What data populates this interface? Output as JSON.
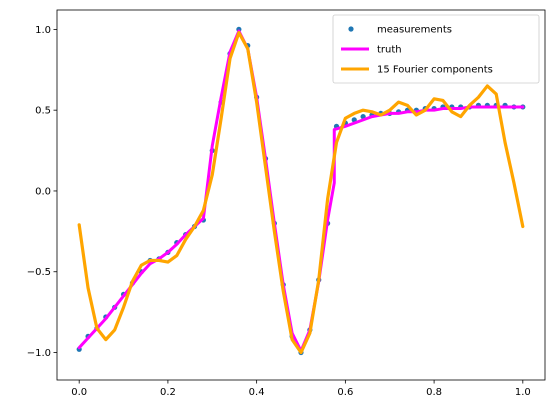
{
  "chart_data": {
    "type": "scatter",
    "title": "",
    "xlabel": "",
    "ylabel": "",
    "xlim": [
      -0.05,
      1.05
    ],
    "ylim": [
      -1.17,
      1.12
    ],
    "xticks": [
      0.0,
      0.2,
      0.4,
      0.6,
      0.8,
      1.0
    ],
    "xtick_labels": [
      "0.0",
      "0.2",
      "0.4",
      "0.6",
      "0.8",
      "1.0"
    ],
    "yticks": [
      -1.0,
      -0.5,
      0.0,
      0.5,
      1.0
    ],
    "ytick_labels": [
      "−1.0",
      "−0.5",
      "0.0",
      "0.5",
      "1.0"
    ],
    "grid": false,
    "legend_position": "top-right",
    "series": [
      {
        "name": "measurements",
        "kind": "scatter",
        "color": "#1f77b4",
        "x": [
          0.0,
          0.02,
          0.04,
          0.06,
          0.08,
          0.1,
          0.12,
          0.14,
          0.16,
          0.18,
          0.2,
          0.22,
          0.24,
          0.26,
          0.28,
          0.3,
          0.32,
          0.34,
          0.36,
          0.38,
          0.4,
          0.42,
          0.44,
          0.46,
          0.48,
          0.5,
          0.52,
          0.54,
          0.56,
          0.58,
          0.6,
          0.62,
          0.64,
          0.66,
          0.68,
          0.7,
          0.72,
          0.74,
          0.76,
          0.78,
          0.8,
          0.82,
          0.84,
          0.86,
          0.88,
          0.9,
          0.92,
          0.94,
          0.96,
          0.98,
          1.0
        ],
        "y": [
          -0.98,
          -0.9,
          -0.85,
          -0.78,
          -0.72,
          -0.64,
          -0.57,
          -0.5,
          -0.43,
          -0.42,
          -0.38,
          -0.32,
          -0.27,
          -0.22,
          -0.18,
          0.25,
          0.55,
          0.85,
          1.0,
          0.9,
          0.58,
          0.2,
          -0.2,
          -0.58,
          -0.9,
          -1.0,
          -0.86,
          -0.55,
          -0.2,
          0.4,
          0.42,
          0.44,
          0.46,
          0.47,
          0.48,
          0.48,
          0.49,
          0.5,
          0.5,
          0.51,
          0.51,
          0.52,
          0.52,
          0.52,
          0.52,
          0.53,
          0.53,
          0.53,
          0.53,
          0.52,
          0.52
        ]
      },
      {
        "name": "truth",
        "kind": "line",
        "color": "#ff00ff",
        "x": [
          0.0,
          0.02,
          0.04,
          0.06,
          0.08,
          0.1,
          0.12,
          0.14,
          0.16,
          0.18,
          0.2,
          0.22,
          0.24,
          0.26,
          0.28,
          0.3,
          0.32,
          0.34,
          0.36,
          0.38,
          0.4,
          0.42,
          0.44,
          0.46,
          0.48,
          0.5,
          0.52,
          0.54,
          0.56,
          0.575,
          0.575,
          0.6,
          0.62,
          0.64,
          0.66,
          0.68,
          0.7,
          0.72,
          0.74,
          0.76,
          0.78,
          0.8,
          0.82,
          0.84,
          0.86,
          0.88,
          0.9,
          0.92,
          0.94,
          0.96,
          0.98,
          1.0
        ],
        "y": [
          -0.97,
          -0.91,
          -0.85,
          -0.79,
          -0.72,
          -0.65,
          -0.58,
          -0.51,
          -0.45,
          -0.42,
          -0.38,
          -0.33,
          -0.27,
          -0.22,
          -0.17,
          0.28,
          0.58,
          0.86,
          0.99,
          0.88,
          0.58,
          0.2,
          -0.2,
          -0.58,
          -0.88,
          -0.99,
          -0.86,
          -0.56,
          -0.18,
          0.05,
          0.38,
          0.4,
          0.42,
          0.44,
          0.46,
          0.47,
          0.48,
          0.48,
          0.49,
          0.49,
          0.5,
          0.5,
          0.51,
          0.51,
          0.51,
          0.52,
          0.52,
          0.52,
          0.52,
          0.52,
          0.52,
          0.52
        ]
      },
      {
        "name": "15 Fourier components",
        "kind": "line",
        "color": "#ffa500",
        "x": [
          0.0,
          0.02,
          0.04,
          0.06,
          0.08,
          0.1,
          0.12,
          0.14,
          0.16,
          0.18,
          0.2,
          0.22,
          0.24,
          0.26,
          0.28,
          0.3,
          0.32,
          0.34,
          0.36,
          0.38,
          0.4,
          0.42,
          0.44,
          0.46,
          0.48,
          0.5,
          0.52,
          0.54,
          0.56,
          0.58,
          0.6,
          0.62,
          0.64,
          0.66,
          0.68,
          0.7,
          0.72,
          0.74,
          0.76,
          0.78,
          0.8,
          0.82,
          0.84,
          0.86,
          0.88,
          0.9,
          0.92,
          0.94,
          0.96,
          0.98,
          1.0
        ],
        "y": [
          -0.21,
          -0.6,
          -0.85,
          -0.92,
          -0.86,
          -0.72,
          -0.56,
          -0.46,
          -0.43,
          -0.43,
          -0.44,
          -0.4,
          -0.3,
          -0.22,
          -0.12,
          0.1,
          0.45,
          0.82,
          0.98,
          0.88,
          0.55,
          0.15,
          -0.25,
          -0.62,
          -0.92,
          -1.0,
          -0.88,
          -0.55,
          -0.05,
          0.3,
          0.45,
          0.48,
          0.5,
          0.49,
          0.47,
          0.5,
          0.55,
          0.53,
          0.47,
          0.5,
          0.57,
          0.56,
          0.49,
          0.46,
          0.53,
          0.58,
          0.65,
          0.6,
          0.3,
          0.05,
          -0.22
        ]
      }
    ]
  }
}
